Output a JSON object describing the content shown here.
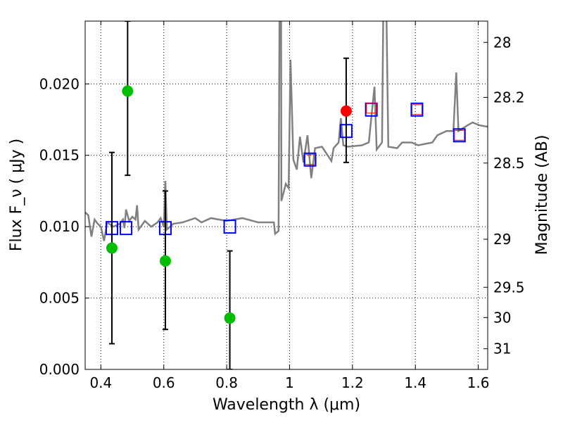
{
  "chart_data": {
    "type": "scatter",
    "xlabel": "Wavelength  λ (μm)",
    "ylabel": "Flux  F_ν  ( μJy )",
    "ylabel_right": "Magnitude (AB)",
    "xlim": [
      0.35,
      1.63
    ],
    "ylim": [
      0.0,
      0.0244
    ],
    "grid": true,
    "x_ticks": [
      "0.4",
      "0.6",
      "0.8",
      "1",
      "1.2",
      "1.4",
      "1.6"
    ],
    "x_tick_values": [
      0.4,
      0.6,
      0.8,
      1.0,
      1.2,
      1.4,
      1.6
    ],
    "y_ticks": [
      "0.000",
      "0.005",
      "0.010",
      "0.015",
      "0.020"
    ],
    "y_tick_values": [
      0.0,
      0.005,
      0.01,
      0.015,
      0.02
    ],
    "right_ticks": [
      "28",
      "28.2",
      "28.5",
      "29",
      "29.5",
      "30",
      "31"
    ],
    "right_tick_values": [
      28,
      28.2,
      28.5,
      29,
      29.5,
      30,
      31
    ],
    "colors": {
      "spectrum": "#808080",
      "green": "#00bf00",
      "red": "#ff0000",
      "blue": "#0000ff",
      "errorbar": "#000000"
    },
    "spectrum": [
      [
        0.35,
        0.011
      ],
      [
        0.36,
        0.0108
      ],
      [
        0.37,
        0.0093
      ],
      [
        0.38,
        0.0105
      ],
      [
        0.39,
        0.0102
      ],
      [
        0.4,
        0.01
      ],
      [
        0.41,
        0.009
      ],
      [
        0.42,
        0.0103
      ],
      [
        0.44,
        0.01
      ],
      [
        0.46,
        0.0102
      ],
      [
        0.47,
        0.0105
      ],
      [
        0.475,
        0.0099
      ],
      [
        0.48,
        0.0112
      ],
      [
        0.49,
        0.0104
      ],
      [
        0.5,
        0.0107
      ],
      [
        0.51,
        0.0105
      ],
      [
        0.515,
        0.0115
      ],
      [
        0.52,
        0.0098
      ],
      [
        0.54,
        0.0104
      ],
      [
        0.56,
        0.01
      ],
      [
        0.58,
        0.0103
      ],
      [
        0.59,
        0.0106
      ],
      [
        0.6,
        0.01
      ],
      [
        0.605,
        0.0132
      ],
      [
        0.61,
        0.0098
      ],
      [
        0.63,
        0.0102
      ],
      [
        0.66,
        0.0103
      ],
      [
        0.7,
        0.0106
      ],
      [
        0.72,
        0.0103
      ],
      [
        0.75,
        0.0106
      ],
      [
        0.8,
        0.0104
      ],
      [
        0.85,
        0.0106
      ],
      [
        0.9,
        0.0103
      ],
      [
        0.95,
        0.0103
      ],
      [
        0.954,
        0.0095
      ],
      [
        0.965,
        0.0097
      ],
      [
        0.968,
        0.025
      ],
      [
        0.973,
        0.025
      ],
      [
        0.974,
        0.0118
      ],
      [
        0.988,
        0.013
      ],
      [
        0.997,
        0.0127
      ],
      [
        1.003,
        0.0217
      ],
      [
        1.012,
        0.0147
      ],
      [
        1.023,
        0.014
      ],
      [
        1.033,
        0.0163
      ],
      [
        1.044,
        0.0145
      ],
      [
        1.057,
        0.0164
      ],
      [
        1.069,
        0.0134
      ],
      [
        1.081,
        0.0155
      ],
      [
        1.103,
        0.0156
      ],
      [
        1.133,
        0.0146
      ],
      [
        1.14,
        0.0155
      ],
      [
        1.156,
        0.0159
      ],
      [
        1.163,
        0.0176
      ],
      [
        1.171,
        0.0157
      ],
      [
        1.185,
        0.0156
      ],
      [
        1.23,
        0.0157
      ],
      [
        1.252,
        0.0159
      ],
      [
        1.27,
        0.0198
      ],
      [
        1.277,
        0.0154
      ],
      [
        1.294,
        0.0159
      ],
      [
        1.298,
        0.025
      ],
      [
        1.308,
        0.025
      ],
      [
        1.314,
        0.0156
      ],
      [
        1.342,
        0.0155
      ],
      [
        1.358,
        0.0159
      ],
      [
        1.388,
        0.0159
      ],
      [
        1.409,
        0.0157
      ],
      [
        1.454,
        0.0159
      ],
      [
        1.47,
        0.0164
      ],
      [
        1.499,
        0.0167
      ],
      [
        1.521,
        0.0167
      ],
      [
        1.53,
        0.0208
      ],
      [
        1.537,
        0.0167
      ],
      [
        1.566,
        0.0171
      ],
      [
        1.582,
        0.0173
      ],
      [
        1.604,
        0.0171
      ],
      [
        1.63,
        0.017
      ]
    ],
    "green_points": [
      {
        "x": 0.435,
        "y": 0.0085,
        "err_lo": 0.0018,
        "err_hi": 0.0152
      },
      {
        "x": 0.485,
        "y": 0.0195,
        "err_lo": 0.0136,
        "err_hi": 0.0244
      },
      {
        "x": 0.605,
        "y": 0.0076,
        "err_lo": 0.0028,
        "err_hi": 0.0125
      },
      {
        "x": 0.81,
        "y": 0.0036,
        "err_lo": 0.0,
        "err_hi": 0.0083
      }
    ],
    "red_points": [
      {
        "x": 1.18,
        "y": 0.0181,
        "err_lo": 0.0145,
        "err_hi": 0.0218
      }
    ],
    "blue_squares": [
      [
        0.435,
        0.0099
      ],
      [
        0.48,
        0.0099
      ],
      [
        0.605,
        0.0099
      ],
      [
        0.81,
        0.01
      ],
      [
        1.065,
        0.0147
      ],
      [
        1.18,
        0.0167
      ],
      [
        1.26,
        0.0182
      ],
      [
        1.405,
        0.0182
      ],
      [
        1.54,
        0.0164
      ]
    ],
    "red_squares": [
      [
        1.065,
        0.0147
      ],
      [
        1.26,
        0.0183
      ],
      [
        1.405,
        0.0182
      ],
      [
        1.54,
        0.0164
      ]
    ]
  }
}
